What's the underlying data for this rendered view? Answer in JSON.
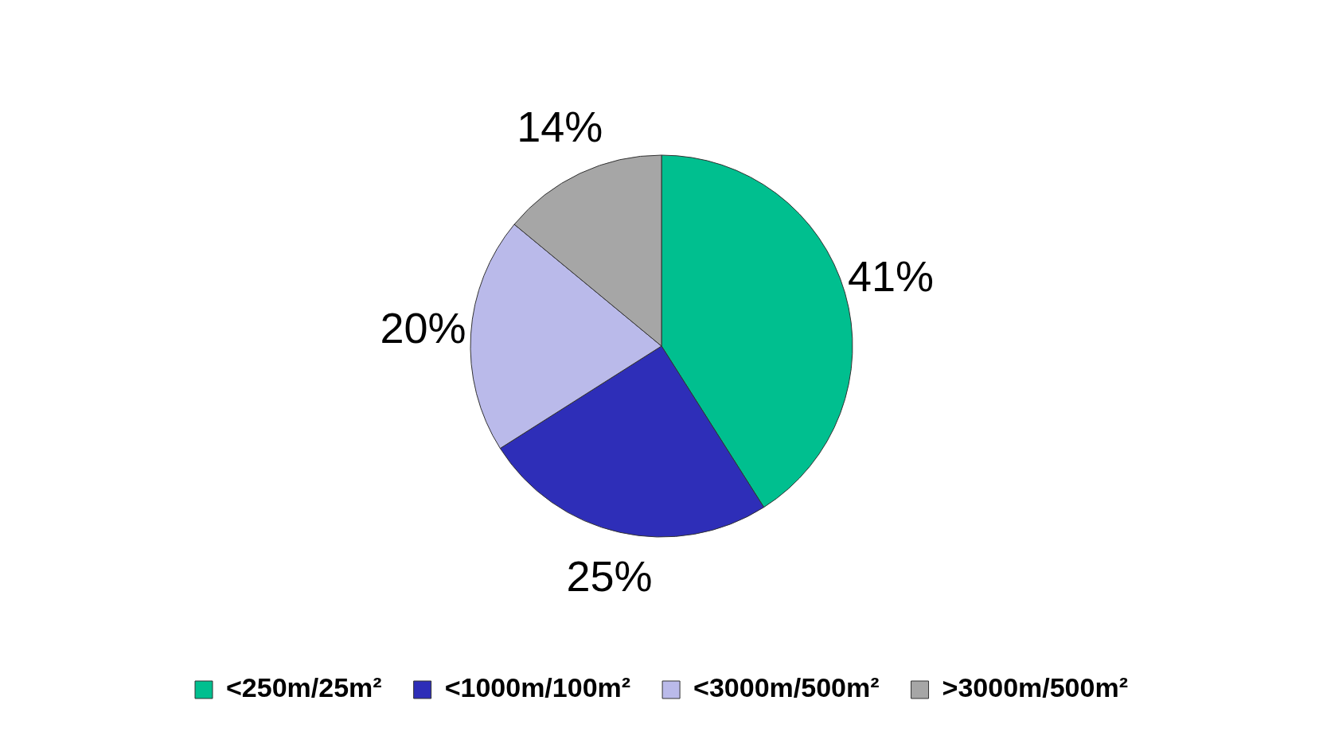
{
  "chart_data": {
    "type": "pie",
    "categories": [
      "<250m/25m²",
      "<1000m/100m²",
      "<3000m/500m²",
      ">3000m/500m²"
    ],
    "values": [
      41,
      25,
      20,
      14
    ],
    "colors": [
      "#00bf8f",
      "#2e2eb8",
      "#babaea",
      "#a6a6a6"
    ],
    "value_labels": [
      "41%",
      "25%",
      "20%",
      "14%"
    ],
    "legend": "bottom"
  }
}
